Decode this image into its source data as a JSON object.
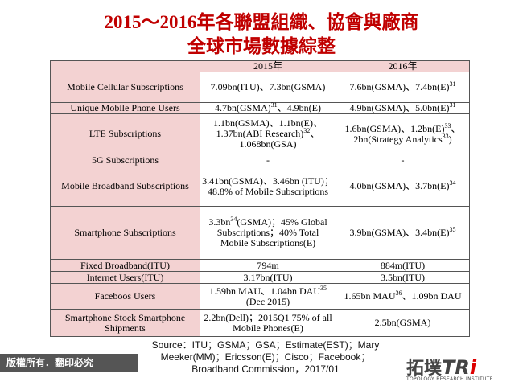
{
  "header": {
    "title_lines": [
      "2015～2016年各聯盟組織、協會與廠商",
      "全球市場數據綜整"
    ]
  },
  "table": {
    "columns": [
      "2015年",
      "2016年"
    ],
    "rows": [
      {
        "label": "Mobile Cellular Subscriptions",
        "cells": [
          [
            {
              "text": "7.09bn(ITU)、7.3bn(GSMA)"
            }
          ],
          [
            {
              "text": "7.6bn(GSMA)、7.4bn(E)"
            },
            {
              "sup": "31"
            }
          ]
        ]
      },
      {
        "label": "Unique Mobile Phone Users",
        "cells": [
          [
            {
              "text": "4.7bn(GSMA)"
            },
            {
              "sup": "31"
            },
            {
              "text": "、4.9bn(E)"
            }
          ],
          [
            {
              "text": "4.9bn(GSMA)、5.0bn(E)"
            },
            {
              "sup": "31"
            }
          ]
        ]
      },
      {
        "label": "LTE Subscriptions",
        "cells": [
          [
            {
              "text": "1.1bn(GSMA)、1.1bn(E)、1.37bn(ABI Research)"
            },
            {
              "sup": "32"
            },
            {
              "text": "、1.068bn(GSA)"
            }
          ],
          [
            {
              "text": "1.6bn(GSMA)、1.2bn(E)"
            },
            {
              "sup": "33"
            },
            {
              "text": "、2bn(Strategy Analytics"
            },
            {
              "sup": "33"
            },
            {
              "text": ")"
            }
          ]
        ]
      },
      {
        "label": "5G Subscriptions",
        "cells": [
          [
            {
              "text": "-"
            }
          ],
          [
            {
              "text": "-"
            }
          ]
        ]
      },
      {
        "label": "Mobile Broadband Subscriptions",
        "cells": [
          [
            {
              "text": "3.41bn(GSMA)、3.46bn (ITU)；48.8% of Mobile Subscriptions"
            }
          ],
          [
            {
              "text": "4.0bn(GSMA)、3.7bn(E)"
            },
            {
              "sup": "34"
            }
          ]
        ]
      },
      {
        "label": "Smartphone Subscriptions",
        "cells": [
          [
            {
              "text": "3.3bn"
            },
            {
              "sup": "34"
            },
            {
              "text": "(GSMA)；45% Global Subscriptions；40% Total Mobile Subscriptions(E)"
            }
          ],
          [
            {
              "text": "3.9bn(GSMA)、3.4bn(E)"
            },
            {
              "sup": "35"
            }
          ]
        ]
      },
      {
        "label": "Fixed Broadband(ITU)",
        "cells": [
          [
            {
              "text": "794m"
            }
          ],
          [
            {
              "text": "884m(ITU)"
            }
          ]
        ]
      },
      {
        "label": "Internet Users(ITU)",
        "cells": [
          [
            {
              "text": "3.17bn(ITU)"
            }
          ],
          [
            {
              "text": "3.5bn(ITU)"
            }
          ]
        ]
      },
      {
        "label": "Faceboos Users",
        "cells": [
          [
            {
              "text": "1.59bn MAU、1.04bn DAU"
            },
            {
              "sup": "35"
            },
            {
              "text": " (Dec 2015)"
            }
          ],
          [
            {
              "text": "1.65bn MAU"
            },
            {
              "sup": "36"
            },
            {
              "text": "、1.09bn DAU"
            }
          ]
        ]
      },
      {
        "label": "Smartphone Stock Smartphone Shipments",
        "cells": [
          [
            {
              "text": "2.2bn(Dell)；2015Q1 75% of all Mobile Phones(E)"
            }
          ],
          [
            {
              "text": "2.5bn(GSMA)"
            }
          ]
        ]
      }
    ]
  },
  "source": "Source：ITU；GSMA；GSA；Estimate(EST)；Mary Meeker(MM)；Ericsson(E)；Cisco；Facebook；Broadband Commission，2017/01",
  "footer": {
    "copyright": "版權所有．翻印必究",
    "logo_name": "拓墣",
    "logo_mark": "TR",
    "logo_mark_end": "i",
    "logo_sub": "TOPOLOGY RESEARCH INSTITUTE"
  }
}
